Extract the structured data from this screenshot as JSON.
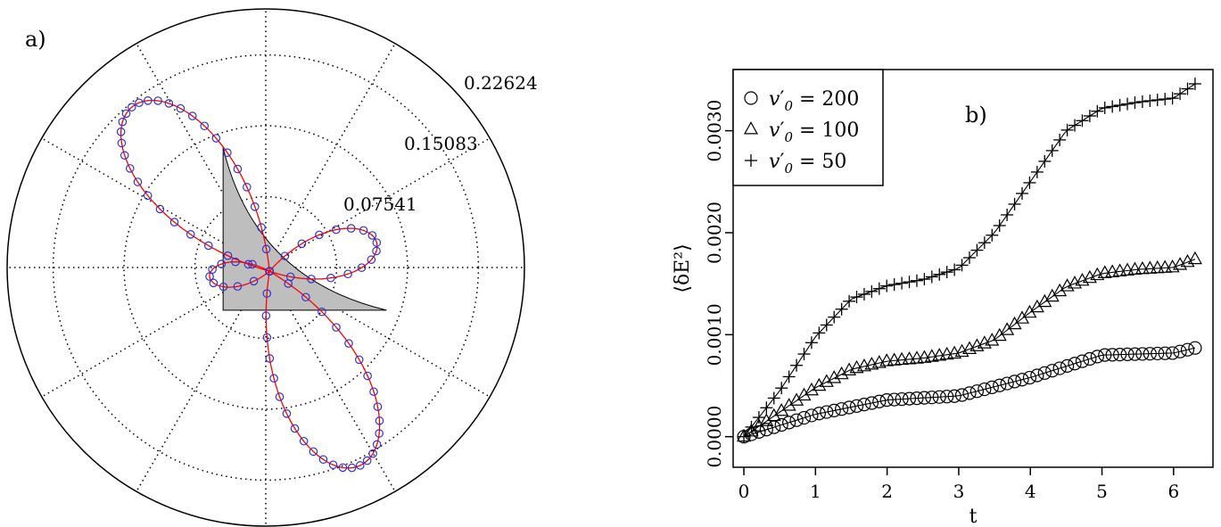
{
  "chart_data": [
    {
      "panel_label": "a)",
      "type": "polar",
      "radial_ticks": [
        0.07541,
        0.15083,
        0.22624
      ],
      "radial_tick_labels": [
        "0.07541",
        "0.15083",
        "0.22624"
      ],
      "rmax": 0.2752,
      "grid": true,
      "spokes_deg": [
        0,
        30,
        60,
        90,
        120,
        150,
        180,
        210,
        240,
        270,
        300,
        330
      ],
      "colors": {
        "curve": "#ff0000",
        "markers": "#3333cc",
        "triangle": "#bebebe",
        "grid": "#000000"
      },
      "triangle_vertices": [
        [
          -0.0454,
          0.1277
        ],
        [
          -0.0454,
          -0.0454
        ],
        [
          0.1285,
          -0.0454
        ]
      ],
      "lobe_centers_deg": [
        130,
        295,
        15,
        185
      ],
      "lobe_radii": [
        0.228,
        0.228,
        0.118,
        0.064
      ],
      "lobe_half_width_deg": 34,
      "marker_radius": 0.0035
    },
    {
      "panel_label": "b)",
      "type": "scatter",
      "xlabel": "t",
      "ylabel": "⟨δE²⟩",
      "xlim": [
        -0.15,
        6.55
      ],
      "ylim": [
        -0.0003,
        0.0036
      ],
      "xticks": [
        0,
        1,
        2,
        3,
        4,
        5,
        6
      ],
      "xtick_labels": [
        "0",
        "1",
        "2",
        "3",
        "4",
        "5",
        "6"
      ],
      "yticks": [
        0.0,
        0.001,
        0.002,
        0.003
      ],
      "ytick_labels": [
        "0.0000",
        "0.0010",
        "0.0020",
        "0.0030"
      ],
      "legend_position": "top-left",
      "legend": [
        {
          "symbol": "circle",
          "prime_var": "v",
          "sub": "0",
          "value": "= 200"
        },
        {
          "symbol": "triangle",
          "prime_var": "v",
          "sub": "0",
          "value": "= 100"
        },
        {
          "symbol": "plus",
          "prime_var": "v",
          "sub": "0",
          "value": "= 50"
        }
      ],
      "series": [
        {
          "symbol": "circle",
          "t": [
            0,
            1,
            2,
            3,
            4,
            5,
            6,
            6.3
          ],
          "y": [
            0,
            0.00022,
            0.00036,
            0.0004,
            0.00058,
            0.0008,
            0.00082,
            0.00087
          ]
        },
        {
          "symbol": "triangle",
          "t": [
            0,
            1,
            1.5,
            2,
            2.5,
            3,
            3.5,
            4,
            4.5,
            5,
            5.5,
            6,
            6.3
          ],
          "y": [
            0,
            0.00048,
            0.00066,
            0.00074,
            0.00077,
            0.00082,
            0.00095,
            0.00122,
            0.00147,
            0.0016,
            0.00164,
            0.00166,
            0.00174
          ]
        },
        {
          "symbol": "plus",
          "t": [
            0,
            0.5,
            1,
            1.5,
            2,
            2.5,
            3,
            3.5,
            4,
            4.5,
            5,
            5.5,
            6,
            6.3
          ],
          "y": [
            0,
            0.00045,
            0.00098,
            0.00135,
            0.00148,
            0.00154,
            0.00165,
            0.002,
            0.0025,
            0.003,
            0.00322,
            0.00328,
            0.00332,
            0.00346
          ]
        }
      ]
    }
  ]
}
